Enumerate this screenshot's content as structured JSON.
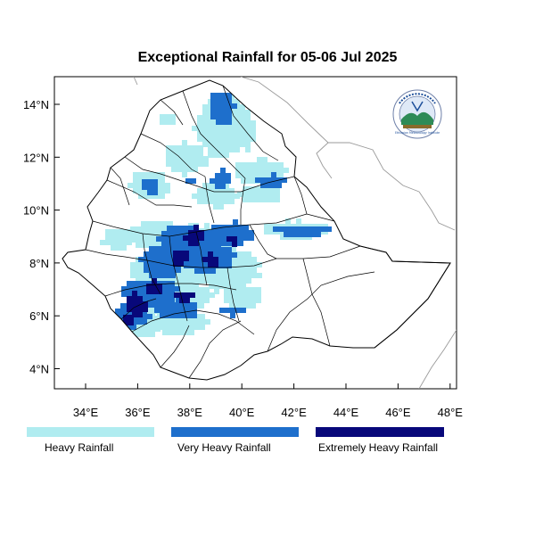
{
  "title": "Exceptional Rainfall for 05-06 Jul 2025",
  "x_ticks": [
    "34°E",
    "36°E",
    "38°E",
    "40°E",
    "42°E",
    "44°E",
    "46°E",
    "48°E"
  ],
  "y_ticks": [
    "14°N",
    "12°N",
    "10°N",
    "8°N",
    "6°N",
    "4°N"
  ],
  "legend": [
    {
      "label": "Heavy Rainfall",
      "color": "#b0ecf0"
    },
    {
      "label": "Very Heavy Rainfall",
      "color": "#1e6fcc"
    },
    {
      "label": "Extremely Heavy Rainfall",
      "color": "#08087a"
    }
  ],
  "logo": {
    "name": "ethiopian-meteorology-institute-logo",
    "text": "ኢትዮጵያ ሜቴዎሮሎጂ ኢንስቲትዩት / Ethiopian Meteorology Institute"
  },
  "colors": {
    "heavy": "#b0ecf0",
    "very_heavy": "#1e6fcc",
    "extreme": "#08087a",
    "frame": "#000000",
    "border_gray": "#9a9a9a"
  }
}
